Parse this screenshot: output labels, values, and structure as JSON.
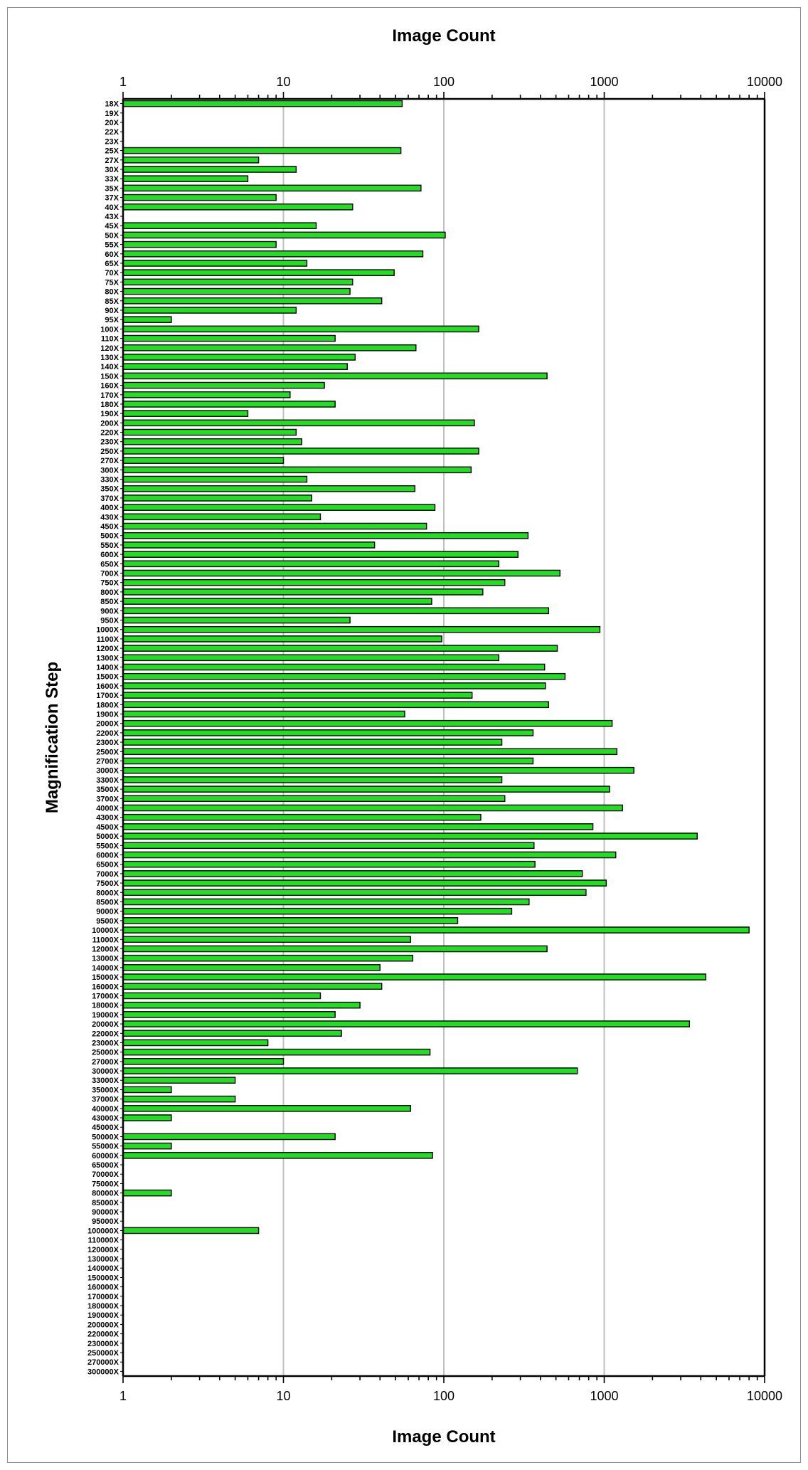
{
  "chart_data": {
    "type": "bar",
    "orientation": "horizontal",
    "xscale": "log",
    "xlim": [
      1,
      10000
    ],
    "xticks": [
      "1",
      "10",
      "100",
      "1000",
      "10000"
    ],
    "xlabel": "Image Count",
    "ylabel": "Magnification Step",
    "grid": "vertical at major ticks",
    "bar_color": "#22dd22",
    "bar_edge_color": "#000000",
    "categories": [
      "18X",
      "19X",
      "20X",
      "22X",
      "23X",
      "25X",
      "27X",
      "30X",
      "33X",
      "35X",
      "37X",
      "40X",
      "43X",
      "45X",
      "50X",
      "55X",
      "60X",
      "65X",
      "70X",
      "75X",
      "80X",
      "85X",
      "90X",
      "95X",
      "100X",
      "110X",
      "120X",
      "130X",
      "140X",
      "150X",
      "160X",
      "170X",
      "180X",
      "190X",
      "200X",
      "220X",
      "230X",
      "250X",
      "270X",
      "300X",
      "330X",
      "350X",
      "370X",
      "400X",
      "430X",
      "450X",
      "500X",
      "550X",
      "600X",
      "650X",
      "700X",
      "750X",
      "800X",
      "850X",
      "900X",
      "950X",
      "1000X",
      "1100X",
      "1200X",
      "1300X",
      "1400X",
      "1500X",
      "1600X",
      "1700X",
      "1800X",
      "1900X",
      "2000X",
      "2200X",
      "2300X",
      "2500X",
      "2700X",
      "3000X",
      "3300X",
      "3500X",
      "3700X",
      "4000X",
      "4300X",
      "4500X",
      "5000X",
      "5500X",
      "6000X",
      "6500X",
      "7000X",
      "7500X",
      "8000X",
      "8500X",
      "9000X",
      "9500X",
      "10000X",
      "11000X",
      "12000X",
      "13000X",
      "14000X",
      "15000X",
      "16000X",
      "17000X",
      "18000X",
      "19000X",
      "20000X",
      "22000X",
      "23000X",
      "25000X",
      "27000X",
      "30000X",
      "33000X",
      "35000X",
      "37000X",
      "40000X",
      "43000X",
      "45000X",
      "50000X",
      "55000X",
      "60000X",
      "65000X",
      "70000X",
      "75000X",
      "80000X",
      "85000X",
      "90000X",
      "95000X",
      "100000X",
      "110000X",
      "120000X",
      "130000X",
      "140000X",
      "150000X",
      "160000X",
      "170000X",
      "180000X",
      "190000X",
      "200000X",
      "220000X",
      "230000X",
      "250000X",
      "270000X",
      "300000X"
    ],
    "values": [
      55,
      0,
      0,
      0,
      0,
      54,
      7,
      12,
      6,
      72,
      9,
      27,
      0,
      16,
      102,
      9,
      74,
      14,
      49,
      27,
      26,
      41,
      12,
      2,
      165,
      21,
      67,
      28,
      25,
      440,
      18,
      11,
      21,
      6,
      155,
      12,
      13,
      165,
      10,
      148,
      14,
      66,
      15,
      88,
      17,
      78,
      335,
      37,
      290,
      220,
      530,
      240,
      175,
      84,
      450,
      26,
      940,
      97,
      510,
      220,
      425,
      570,
      430,
      150,
      450,
      57,
      1120,
      360,
      230,
      1200,
      360,
      1530,
      230,
      1080,
      240,
      1300,
      170,
      850,
      3800,
      365,
      1180,
      370,
      730,
      1030,
      770,
      340,
      265,
      122,
      8000,
      62,
      440,
      64,
      40,
      4300,
      41,
      17,
      30,
      21,
      3400,
      23,
      8,
      82,
      10,
      680,
      5,
      2,
      5,
      62,
      2,
      0,
      21,
      2,
      85,
      0,
      0,
      0,
      2,
      0,
      0,
      0,
      7,
      0,
      0,
      0,
      0,
      0,
      0,
      0,
      0,
      0,
      0,
      0,
      0,
      0,
      0,
      0
    ]
  }
}
